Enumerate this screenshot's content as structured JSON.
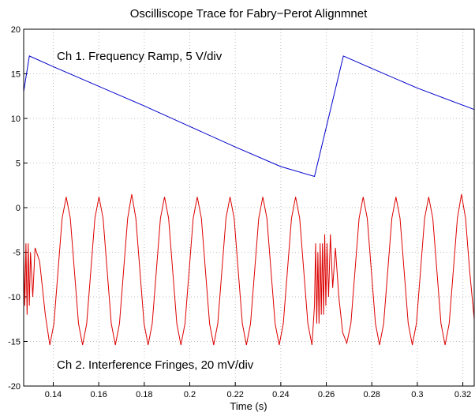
{
  "chart_data": {
    "type": "line",
    "title": "Oscilliscope Trace for Fabry−Perot Alignmnet",
    "xlabel": "Time (s)",
    "annotations": [
      "Ch 1. Frequency Ramp, 5 V/div",
      "Ch 2. Interference Fringes, 20 mV/div"
    ],
    "xlim": [
      0.127,
      0.325
    ],
    "xticks": [
      0.14,
      0.16,
      0.18,
      0.2,
      0.22,
      0.24,
      0.26,
      0.28,
      0.3,
      0.32
    ],
    "ylim": [
      -20,
      20
    ],
    "yticks": [
      -20,
      -15,
      -10,
      -5,
      0,
      5,
      10,
      15,
      20
    ],
    "grid": true,
    "series": [
      {
        "color": "#0000cc",
        "x": [
          0.127,
          0.1295,
          0.14,
          0.16,
          0.18,
          0.2,
          0.22,
          0.24,
          0.2548,
          0.2675,
          0.28,
          0.3,
          0.325
        ],
        "values": [
          13,
          17,
          15.8,
          13.6,
          11.4,
          9.1,
          6.8,
          4.6,
          3.5,
          17,
          15.6,
          13.4,
          11
        ]
      },
      {
        "color": "#dd0000",
        "x": [
          0.127,
          0.1275,
          0.128,
          0.1285,
          0.129,
          0.1295,
          0.13,
          0.131,
          0.132,
          0.134,
          0.1365,
          0.1385,
          0.1403,
          0.1421,
          0.1439,
          0.1457,
          0.1475,
          0.1493,
          0.1511,
          0.1529,
          0.1547,
          0.1565,
          0.1583,
          0.1601,
          0.1619,
          0.1637,
          0.1655,
          0.1673,
          0.1691,
          0.1709,
          0.1727,
          0.1745,
          0.1763,
          0.1781,
          0.1799,
          0.1817,
          0.1835,
          0.1853,
          0.1871,
          0.1889,
          0.1907,
          0.1925,
          0.1943,
          0.1961,
          0.1979,
          0.1997,
          0.2015,
          0.2033,
          0.2051,
          0.2069,
          0.2087,
          0.2105,
          0.2123,
          0.2141,
          0.2159,
          0.2177,
          0.2195,
          0.2213,
          0.2231,
          0.2249,
          0.2267,
          0.2285,
          0.2303,
          0.2321,
          0.2339,
          0.2357,
          0.2375,
          0.2393,
          0.2411,
          0.2429,
          0.2447,
          0.2465,
          0.2483,
          0.2501,
          0.2519,
          0.2537,
          0.2548,
          0.2553,
          0.2558,
          0.2563,
          0.2568,
          0.2573,
          0.2578,
          0.2583,
          0.2588,
          0.2593,
          0.2598,
          0.2603,
          0.261,
          0.2618,
          0.2628,
          0.264,
          0.2655,
          0.2672,
          0.269,
          0.2708,
          0.2726,
          0.2744,
          0.2762,
          0.278,
          0.2798,
          0.2816,
          0.2834,
          0.2852,
          0.287,
          0.2888,
          0.2906,
          0.2924,
          0.2942,
          0.296,
          0.2978,
          0.2996,
          0.3014,
          0.3032,
          0.305,
          0.3068,
          0.3086,
          0.3104,
          0.3122,
          0.314,
          0.3158,
          0.3176,
          0.3194,
          0.3212,
          0.323,
          0.325
        ],
        "values": [
          -5,
          -11,
          -4,
          -12,
          -4,
          -11,
          -5,
          -10,
          -4.5,
          -6,
          -12,
          -15.4,
          -13,
          -7.1,
          -1.2,
          1.2,
          -1.2,
          -7.1,
          -13,
          -15.4,
          -13,
          -7.1,
          -1.2,
          1.2,
          -1.2,
          -7.1,
          -13,
          -15.4,
          -13,
          -7.1,
          -1.2,
          1.5,
          -1.2,
          -7.1,
          -13,
          -15.4,
          -13,
          -7.1,
          -1.2,
          1.2,
          -1.2,
          -7.1,
          -13,
          -15.4,
          -13,
          -7.1,
          -1.2,
          1.2,
          -1.2,
          -7.1,
          -13,
          -15.4,
          -13,
          -7.1,
          -1.2,
          1.2,
          -1.2,
          -7.1,
          -13,
          -15.4,
          -13,
          -7.1,
          -1.2,
          1.2,
          -1.2,
          -7.1,
          -13,
          -15.4,
          -13,
          -7.1,
          -1.2,
          1.2,
          -1.2,
          -7.1,
          -13,
          -15.4,
          -11,
          -4,
          -13,
          -5,
          -13,
          -4,
          -12,
          -4,
          -12,
          -3,
          -11,
          -4,
          -10,
          -3,
          -9,
          -4.5,
          -10,
          -14,
          -15.2,
          -13,
          -7.1,
          -1.2,
          1.2,
          -1.2,
          -7.1,
          -13,
          -15.4,
          -13,
          -7.1,
          -1.2,
          1.2,
          -1.2,
          -7.1,
          -13,
          -15.4,
          -13,
          -7.1,
          -1.2,
          1.2,
          -1.2,
          -7.1,
          -13,
          -15.4,
          -13,
          -7.1,
          -1.2,
          1.5,
          -1.2,
          -7.1,
          -12.5
        ]
      }
    ]
  }
}
